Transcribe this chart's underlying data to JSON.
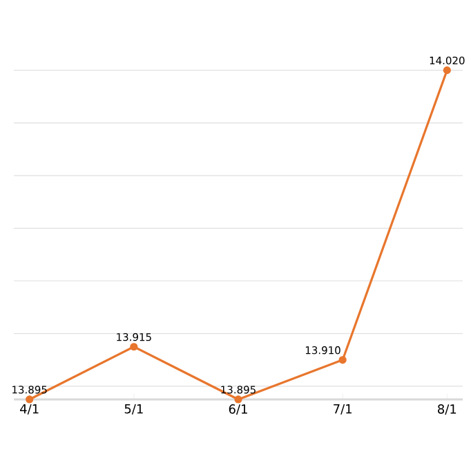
{
  "chart_data": {
    "type": "line",
    "categories": [
      "4/1",
      "5/1",
      "6/1",
      "7/1",
      "8/1"
    ],
    "series": [
      {
        "color": "#e8762d",
        "values": [
          13.895,
          13.915,
          13.895,
          13.91,
          14.02
        ],
        "value_labels": [
          "13.895",
          "13.915",
          "13.895",
          "13.910",
          "14.020"
        ]
      }
    ],
    "grid": "y",
    "tick_labels": "x",
    "marker": "circle",
    "line_style": "solid"
  }
}
